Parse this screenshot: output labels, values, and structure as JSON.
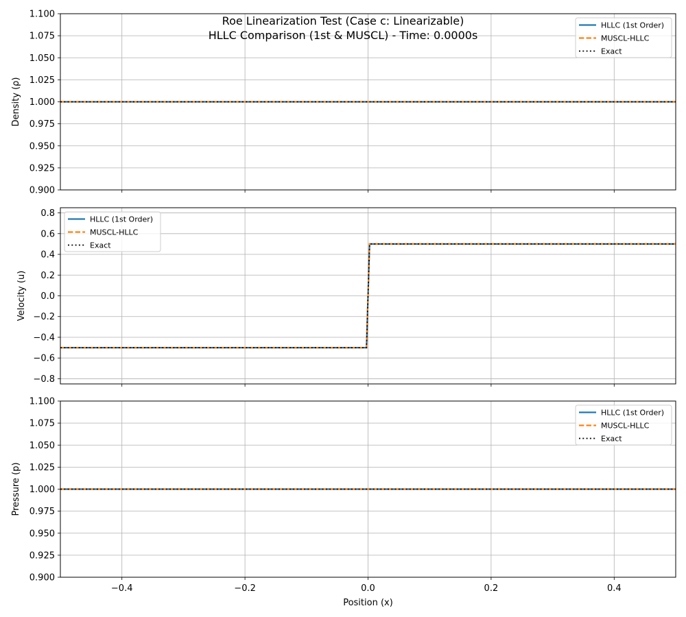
{
  "figure": {
    "title_line1": "Roe Linearization Test (Case c: Linearizable)",
    "title_line2": "HLLC Comparison (1st & MUSCL) - Time: 0.0000s"
  },
  "colors": {
    "hllc": "#1f77b4",
    "muscl": "#ff7f0e",
    "exact": "#000000",
    "grid": "#b0b0b0"
  },
  "chart_data": [
    {
      "type": "line",
      "ylabel": "Density (ρ)",
      "xlim": [
        -0.5,
        0.5
      ],
      "ylim": [
        0.9,
        1.1
      ],
      "yticks": [
        0.9,
        0.925,
        0.95,
        0.975,
        1.0,
        1.025,
        1.05,
        1.075,
        1.1
      ],
      "ytick_labels": [
        "0.900",
        "0.925",
        "0.950",
        "0.975",
        "1.000",
        "1.025",
        "1.050",
        "1.075",
        "1.100"
      ],
      "xticks": [
        -0.4,
        -0.2,
        0.0,
        0.2,
        0.4
      ],
      "grid": true,
      "legend_placement": "upper right",
      "series": [
        {
          "name": "HLLC (1st Order)",
          "style": "solid",
          "x": [
            -0.5,
            0.5
          ],
          "y": [
            1.0,
            1.0
          ]
        },
        {
          "name": "MUSCL-HLLC",
          "style": "dashed",
          "x": [
            -0.5,
            0.5
          ],
          "y": [
            1.0,
            1.0
          ]
        },
        {
          "name": "Exact",
          "style": "dotted",
          "x": [
            -0.5,
            0.5
          ],
          "y": [
            1.0,
            1.0
          ]
        }
      ]
    },
    {
      "type": "line",
      "ylabel": "Velocity (u)",
      "xlim": [
        -0.5,
        0.5
      ],
      "ylim": [
        -0.85,
        0.85
      ],
      "yticks": [
        -0.8,
        -0.6,
        -0.4,
        -0.2,
        0.0,
        0.2,
        0.4,
        0.6,
        0.8
      ],
      "ytick_labels": [
        "−0.8",
        "−0.6",
        "−0.4",
        "−0.2",
        "0.0",
        "0.2",
        "0.4",
        "0.6",
        "0.8"
      ],
      "xticks": [
        -0.4,
        -0.2,
        0.0,
        0.2,
        0.4
      ],
      "grid": true,
      "legend_placement": "upper left",
      "series": [
        {
          "name": "HLLC (1st Order)",
          "style": "solid",
          "x": [
            -0.5,
            -0.0025,
            0.0025,
            0.5
          ],
          "y": [
            -0.5,
            -0.5,
            0.5,
            0.5
          ]
        },
        {
          "name": "MUSCL-HLLC",
          "style": "dashed",
          "x": [
            -0.5,
            -0.0025,
            0.0025,
            0.5
          ],
          "y": [
            -0.5,
            -0.5,
            0.5,
            0.5
          ]
        },
        {
          "name": "Exact",
          "style": "dotted",
          "x": [
            -0.5,
            -0.0025,
            0.0025,
            0.5
          ],
          "y": [
            -0.5,
            -0.5,
            0.5,
            0.5
          ]
        }
      ]
    },
    {
      "type": "line",
      "ylabel": "Pressure (p)",
      "xlabel": "Position (x)",
      "xlim": [
        -0.5,
        0.5
      ],
      "ylim": [
        0.9,
        1.1
      ],
      "yticks": [
        0.9,
        0.925,
        0.95,
        0.975,
        1.0,
        1.025,
        1.05,
        1.075,
        1.1
      ],
      "ytick_labels": [
        "0.900",
        "0.925",
        "0.950",
        "0.975",
        "1.000",
        "1.025",
        "1.050",
        "1.075",
        "1.100"
      ],
      "xticks": [
        -0.4,
        -0.2,
        0.0,
        0.2,
        0.4
      ],
      "xtick_labels": [
        "−0.4",
        "−0.2",
        "0.0",
        "0.2",
        "0.4"
      ],
      "grid": true,
      "legend_placement": "upper right",
      "series": [
        {
          "name": "HLLC (1st Order)",
          "style": "solid",
          "x": [
            -0.5,
            0.5
          ],
          "y": [
            1.0,
            1.0
          ]
        },
        {
          "name": "MUSCL-HLLC",
          "style": "dashed",
          "x": [
            -0.5,
            0.5
          ],
          "y": [
            1.0,
            1.0
          ]
        },
        {
          "name": "Exact",
          "style": "dotted",
          "x": [
            -0.5,
            0.5
          ],
          "y": [
            1.0,
            1.0
          ]
        }
      ]
    }
  ]
}
